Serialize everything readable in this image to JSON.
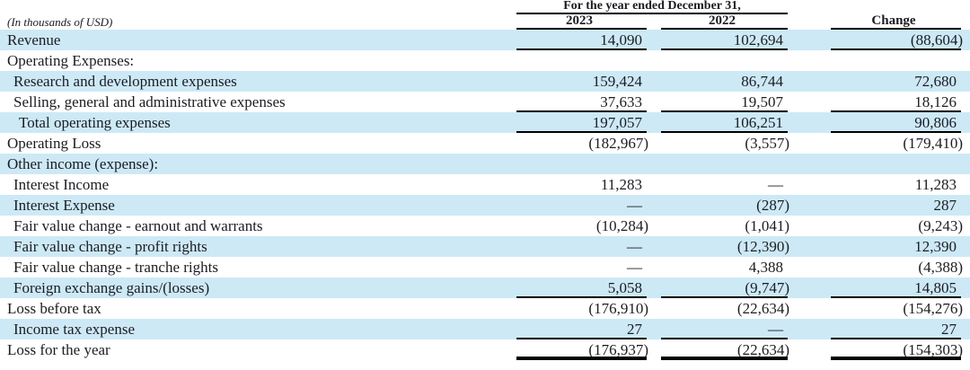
{
  "table": {
    "period_header": "For the year ended December 31,",
    "unit_note": "(In thousands of USD)",
    "columns": [
      "2023",
      "2022",
      "Change"
    ],
    "highlight_color": "#cde9f6",
    "rows": [
      {
        "label": "Revenue",
        "indent": 0,
        "highlight": true,
        "rule_below": "thin",
        "values": [
          "14,090",
          "102,694",
          "(88,604)"
        ]
      },
      {
        "label": "Operating Expenses:",
        "indent": 0,
        "highlight": false,
        "rule_below": "none",
        "values": [
          "",
          "",
          ""
        ]
      },
      {
        "label": "Research and development expenses",
        "indent": 1,
        "highlight": true,
        "rule_below": "none",
        "values": [
          "159,424",
          "86,744",
          "72,680"
        ]
      },
      {
        "label": "Selling, general and administrative expenses",
        "indent": 1,
        "highlight": false,
        "rule_below": "thin",
        "values": [
          "37,633",
          "19,507",
          "18,126"
        ]
      },
      {
        "label": "Total operating expenses",
        "indent": 2,
        "highlight": true,
        "rule_below": "thin",
        "values": [
          "197,057",
          "106,251",
          "90,806"
        ]
      },
      {
        "label": "Operating Loss",
        "indent": 0,
        "highlight": false,
        "rule_below": "none",
        "values": [
          "(182,967)",
          "(3,557)",
          "(179,410)"
        ]
      },
      {
        "label": "Other income (expense):",
        "indent": 0,
        "highlight": true,
        "rule_below": "none",
        "values": [
          "",
          "",
          ""
        ]
      },
      {
        "label": "Interest Income",
        "indent": 1,
        "highlight": false,
        "rule_below": "none",
        "values": [
          "11,283",
          "—",
          "11,283"
        ]
      },
      {
        "label": "Interest Expense",
        "indent": 1,
        "highlight": true,
        "rule_below": "none",
        "values": [
          "—",
          "(287)",
          "287"
        ]
      },
      {
        "label": "Fair value change - earnout and warrants",
        "indent": 1,
        "highlight": false,
        "rule_below": "none",
        "values": [
          "(10,284)",
          "(1,041)",
          "(9,243)"
        ]
      },
      {
        "label": "Fair value change - profit rights",
        "indent": 1,
        "highlight": true,
        "rule_below": "none",
        "values": [
          "—",
          "(12,390)",
          "12,390"
        ]
      },
      {
        "label": "Fair value change - tranche rights",
        "indent": 1,
        "highlight": false,
        "rule_below": "none",
        "values": [
          "—",
          "4,388",
          "(4,388)"
        ]
      },
      {
        "label": "Foreign exchange gains/(losses)",
        "indent": 1,
        "highlight": true,
        "rule_below": "thin",
        "values": [
          "5,058",
          "(9,747)",
          "14,805"
        ]
      },
      {
        "label": "Loss before tax",
        "indent": 0,
        "highlight": false,
        "rule_below": "none",
        "values": [
          "(176,910)",
          "(22,634)",
          "(154,276)"
        ]
      },
      {
        "label": "Income tax expense",
        "indent": 1,
        "highlight": true,
        "rule_below": "thin",
        "values": [
          "27",
          "—",
          "27"
        ]
      },
      {
        "label": "Loss for the year",
        "indent": 0,
        "highlight": false,
        "rule_below": "thick",
        "values": [
          "(176,937)",
          "(22,634)",
          "(154,303)"
        ]
      }
    ]
  }
}
